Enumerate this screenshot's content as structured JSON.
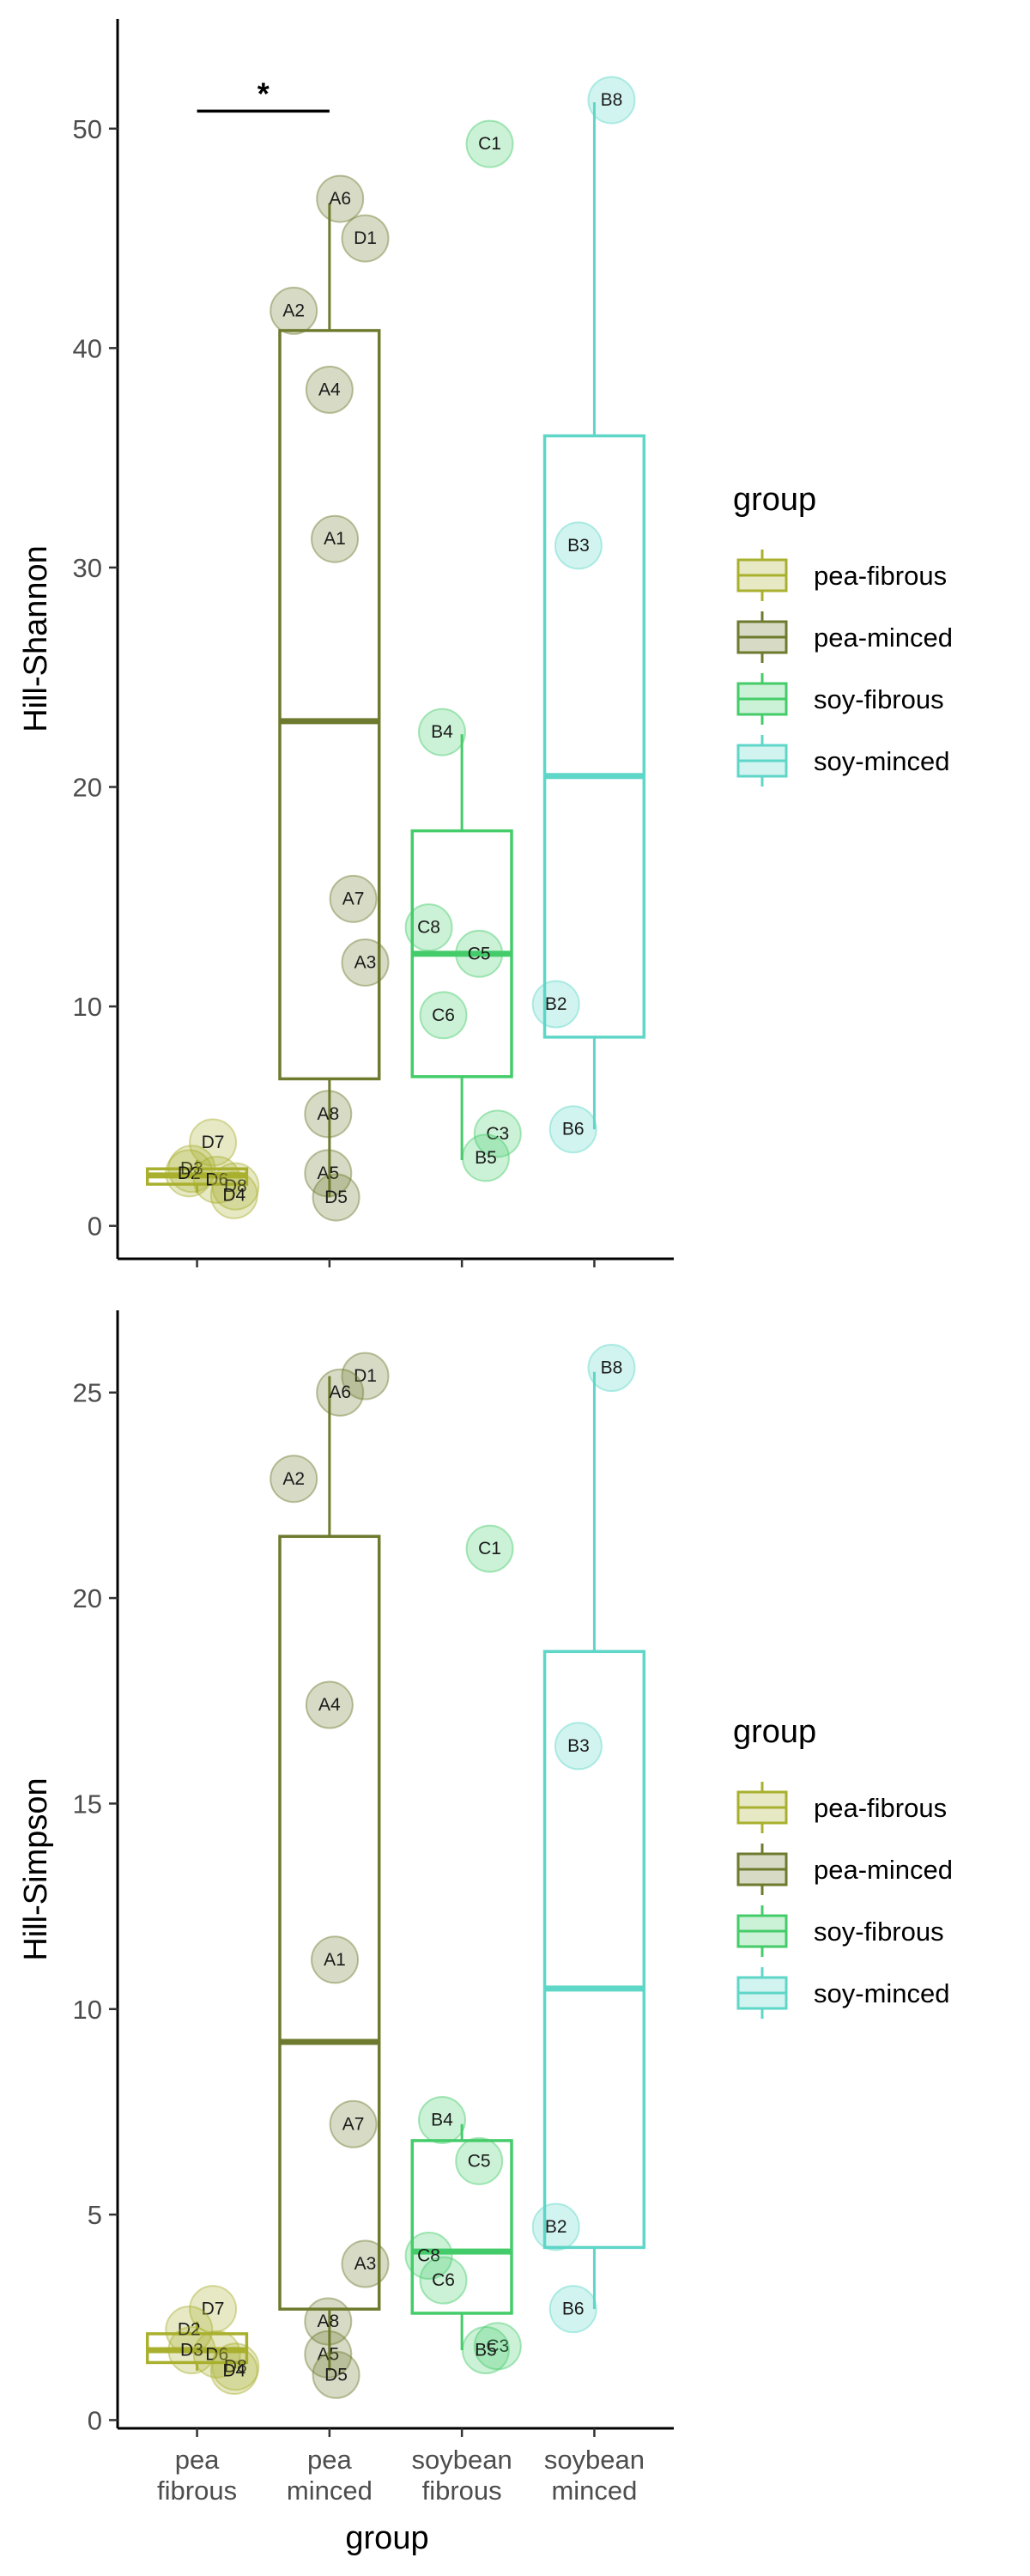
{
  "colors": {
    "pea-fibrous": "#A9B02E",
    "pea-minced": "#6E7A2E",
    "soy-fibrous": "#44CC6A",
    "soy-minced": "#5ED6C8"
  },
  "chart_data": [
    {
      "type": "box",
      "ylabel": "Hill-Shannon",
      "xlabel": "",
      "ylim": [
        -1.5,
        55
      ],
      "yticks": [
        0,
        10,
        20,
        30,
        40,
        50
      ],
      "categories": [
        "pea fibrous",
        "pea minced",
        "soybean fibrous",
        "soybean minced"
      ],
      "category_lines": [
        [
          "pea",
          "fibrous"
        ],
        [
          "pea",
          "minced"
        ],
        [
          "soybean",
          "fibrous"
        ],
        [
          "soybean",
          "minced"
        ]
      ],
      "boxes": [
        {
          "group": "pea-fibrous",
          "min": 1.5,
          "q1": 1.9,
          "median": 2.3,
          "q3": 2.6,
          "max": 3.0
        },
        {
          "group": "pea-minced",
          "min": 1.3,
          "q1": 6.7,
          "median": 23.0,
          "q3": 40.8,
          "max": 46.6
        },
        {
          "group": "soy-fibrous",
          "min": 3.0,
          "q1": 6.8,
          "median": 12.4,
          "q3": 18.0,
          "max": 22.4
        },
        {
          "group": "soy-minced",
          "min": 4.4,
          "q1": 8.6,
          "median": 20.5,
          "q3": 36.0,
          "max": 51.2
        }
      ],
      "points": [
        {
          "label": "D7",
          "group": "pea-fibrous",
          "x": 1.12,
          "y": 3.8
        },
        {
          "label": "D3",
          "group": "pea-fibrous",
          "x": 0.96,
          "y": 2.6
        },
        {
          "label": "D2",
          "group": "pea-fibrous",
          "x": 0.94,
          "y": 2.4
        },
        {
          "label": "D6",
          "group": "pea-fibrous",
          "x": 1.15,
          "y": 2.1
        },
        {
          "label": "D8",
          "group": "pea-fibrous",
          "x": 1.29,
          "y": 1.8
        },
        {
          "label": "D4",
          "group": "pea-fibrous",
          "x": 1.28,
          "y": 1.4
        },
        {
          "label": "A6",
          "group": "pea-minced",
          "x": 2.08,
          "y": 46.8
        },
        {
          "label": "D1",
          "group": "pea-minced",
          "x": 2.27,
          "y": 45.0
        },
        {
          "label": "A2",
          "group": "pea-minced",
          "x": 1.73,
          "y": 41.7
        },
        {
          "label": "A4",
          "group": "pea-minced",
          "x": 2.0,
          "y": 38.1
        },
        {
          "label": "A1",
          "group": "pea-minced",
          "x": 2.04,
          "y": 31.3
        },
        {
          "label": "A7",
          "group": "pea-minced",
          "x": 2.18,
          "y": 14.9
        },
        {
          "label": "A3",
          "group": "pea-minced",
          "x": 2.27,
          "y": 12.0
        },
        {
          "label": "A8",
          "group": "pea-minced",
          "x": 1.99,
          "y": 5.1
        },
        {
          "label": "A5",
          "group": "pea-minced",
          "x": 1.99,
          "y": 2.4
        },
        {
          "label": "D5",
          "group": "pea-minced",
          "x": 2.05,
          "y": 1.3
        },
        {
          "label": "C1",
          "group": "soy-fibrous",
          "x": 3.21,
          "y": 49.3
        },
        {
          "label": "B4",
          "group": "soy-fibrous",
          "x": 2.85,
          "y": 22.5
        },
        {
          "label": "C8",
          "group": "soy-fibrous",
          "x": 2.75,
          "y": 13.6
        },
        {
          "label": "C5",
          "group": "soy-fibrous",
          "x": 3.13,
          "y": 12.4
        },
        {
          "label": "C6",
          "group": "soy-fibrous",
          "x": 2.86,
          "y": 9.6
        },
        {
          "label": "C3",
          "group": "soy-fibrous",
          "x": 3.27,
          "y": 4.2
        },
        {
          "label": "B5",
          "group": "soy-fibrous",
          "x": 3.18,
          "y": 3.1
        },
        {
          "label": "B8",
          "group": "soy-minced",
          "x": 4.13,
          "y": 51.3
        },
        {
          "label": "B3",
          "group": "soy-minced",
          "x": 3.88,
          "y": 31.0
        },
        {
          "label": "B2",
          "group": "soy-minced",
          "x": 3.71,
          "y": 10.1
        },
        {
          "label": "B6",
          "group": "soy-minced",
          "x": 3.84,
          "y": 4.4
        }
      ],
      "significance": {
        "from": 1,
        "to": 2,
        "y": 50.8,
        "label": "*"
      },
      "legend": {
        "title": "group",
        "position": "right",
        "entries": [
          "pea-fibrous",
          "pea-minced",
          "soy-fibrous",
          "soy-minced"
        ]
      }
    },
    {
      "type": "box",
      "ylabel": "Hill-Simpson",
      "xlabel": "group",
      "ylim": [
        -0.2,
        27
      ],
      "yticks": [
        0,
        5,
        10,
        15,
        20,
        25
      ],
      "categories": [
        "pea fibrous",
        "pea minced",
        "soybean fibrous",
        "soybean minced"
      ],
      "category_lines": [
        [
          "pea",
          "fibrous"
        ],
        [
          "pea",
          "minced"
        ],
        [
          "soybean",
          "fibrous"
        ],
        [
          "soybean",
          "minced"
        ]
      ],
      "boxes": [
        {
          "group": "pea-fibrous",
          "min": 1.2,
          "q1": 1.4,
          "median": 1.7,
          "q3": 2.1,
          "max": 2.4
        },
        {
          "group": "pea-minced",
          "min": 1.2,
          "q1": 2.7,
          "median": 9.2,
          "q3": 21.5,
          "max": 25.4
        },
        {
          "group": "soy-fibrous",
          "min": 1.7,
          "q1": 2.6,
          "median": 4.1,
          "q3": 6.8,
          "max": 7.2
        },
        {
          "group": "soy-minced",
          "min": 2.7,
          "q1": 4.2,
          "median": 10.5,
          "q3": 18.7,
          "max": 25.5
        }
      ],
      "points": [
        {
          "label": "D7",
          "group": "pea-fibrous",
          "x": 1.12,
          "y": 2.7
        },
        {
          "label": "D2",
          "group": "pea-fibrous",
          "x": 0.94,
          "y": 2.2
        },
        {
          "label": "D3",
          "group": "pea-fibrous",
          "x": 0.96,
          "y": 1.7
        },
        {
          "label": "D6",
          "group": "pea-fibrous",
          "x": 1.15,
          "y": 1.6
        },
        {
          "label": "D8",
          "group": "pea-fibrous",
          "x": 1.29,
          "y": 1.3
        },
        {
          "label": "D4",
          "group": "pea-fibrous",
          "x": 1.28,
          "y": 1.2
        },
        {
          "label": "D1",
          "group": "pea-minced",
          "x": 2.27,
          "y": 25.4
        },
        {
          "label": "A6",
          "group": "pea-minced",
          "x": 2.08,
          "y": 25.0
        },
        {
          "label": "A2",
          "group": "pea-minced",
          "x": 1.73,
          "y": 22.9
        },
        {
          "label": "A4",
          "group": "pea-minced",
          "x": 2.0,
          "y": 17.4
        },
        {
          "label": "A1",
          "group": "pea-minced",
          "x": 2.04,
          "y": 11.2
        },
        {
          "label": "A7",
          "group": "pea-minced",
          "x": 2.18,
          "y": 7.2
        },
        {
          "label": "A3",
          "group": "pea-minced",
          "x": 2.27,
          "y": 3.8
        },
        {
          "label": "A8",
          "group": "pea-minced",
          "x": 1.99,
          "y": 2.4
        },
        {
          "label": "A5",
          "group": "pea-minced",
          "x": 1.99,
          "y": 1.6
        },
        {
          "label": "D5",
          "group": "pea-minced",
          "x": 2.05,
          "y": 1.1
        },
        {
          "label": "C1",
          "group": "soy-fibrous",
          "x": 3.21,
          "y": 21.2
        },
        {
          "label": "B4",
          "group": "soy-fibrous",
          "x": 2.85,
          "y": 7.3
        },
        {
          "label": "C5",
          "group": "soy-fibrous",
          "x": 3.13,
          "y": 6.3
        },
        {
          "label": "C8",
          "group": "soy-fibrous",
          "x": 2.75,
          "y": 4.0
        },
        {
          "label": "C6",
          "group": "soy-fibrous",
          "x": 2.86,
          "y": 3.4
        },
        {
          "label": "C3",
          "group": "soy-fibrous",
          "x": 3.27,
          "y": 1.8
        },
        {
          "label": "B5",
          "group": "soy-fibrous",
          "x": 3.18,
          "y": 1.7
        },
        {
          "label": "B8",
          "group": "soy-minced",
          "x": 4.13,
          "y": 25.6
        },
        {
          "label": "B3",
          "group": "soy-minced",
          "x": 3.88,
          "y": 16.4
        },
        {
          "label": "B2",
          "group": "soy-minced",
          "x": 3.71,
          "y": 4.7
        },
        {
          "label": "B6",
          "group": "soy-minced",
          "x": 3.84,
          "y": 2.7
        }
      ],
      "legend": {
        "title": "group",
        "position": "right",
        "entries": [
          "pea-fibrous",
          "pea-minced",
          "soy-fibrous",
          "soy-minced"
        ]
      }
    }
  ]
}
